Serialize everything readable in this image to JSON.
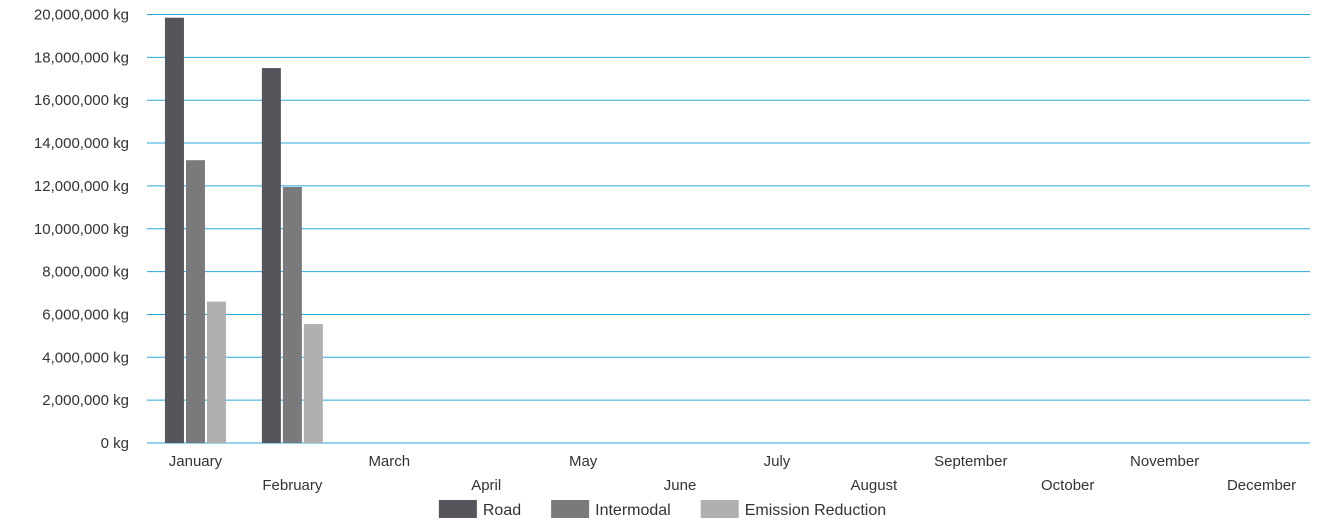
{
  "chart_data": {
    "type": "bar",
    "categories": [
      "January",
      "February",
      "March",
      "April",
      "May",
      "June",
      "July",
      "August",
      "September",
      "October",
      "November",
      "December"
    ],
    "series": [
      {
        "name": "Road",
        "color": "#55565b",
        "values": [
          19850000,
          17500000,
          null,
          null,
          null,
          null,
          null,
          null,
          null,
          null,
          null,
          null
        ]
      },
      {
        "name": "Intermodal",
        "color": "#7a7a7d",
        "values": [
          13200000,
          11950000,
          null,
          null,
          null,
          null,
          null,
          null,
          null,
          null,
          null,
          null
        ]
      },
      {
        "name": "Emission Reduction",
        "color": "#b0b0b0",
        "values": [
          6600000,
          5550000,
          null,
          null,
          null,
          null,
          null,
          null,
          null,
          null,
          null,
          null
        ]
      }
    ],
    "yticks": [
      "0 kg",
      "2,000,000 kg",
      "4,000,000 kg",
      "6,000,000 kg",
      "8,000,000 kg",
      "10,000,000 kg",
      "12,000,000 kg",
      "14,000,000 kg",
      "16,000,000 kg",
      "18,000,000 kg",
      "20,000,000 kg"
    ],
    "ylim": [
      0,
      20000000
    ],
    "grid": true,
    "grid_color": "#29a8dd",
    "legend_position": "bottom-center",
    "xlabel": "",
    "ylabel": ""
  }
}
